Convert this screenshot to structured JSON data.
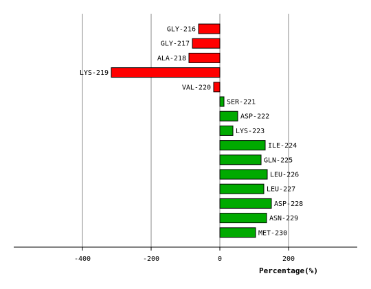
{
  "chart_data": {
    "type": "bar",
    "orientation": "horizontal",
    "categories": [
      "GLY-216",
      "GLY-217",
      "ALA-218",
      "LYS-219",
      "VAL-220",
      "SER-221",
      "ASP-222",
      "LYS-223",
      "ILE-224",
      "GLN-225",
      "LEU-226",
      "LEU-227",
      "ASP-228",
      "ASN-229",
      "MET-230"
    ],
    "values": [
      -62,
      -80,
      -90,
      -316,
      -18,
      12,
      52,
      38,
      132,
      120,
      138,
      128,
      150,
      136,
      104
    ],
    "xlabel": "Percentage(%)",
    "ylabel": "",
    "title": "",
    "xlim": [
      -600,
      400
    ],
    "xticks": [
      -400,
      -200,
      0,
      200
    ],
    "xtick_labels": [
      "-400",
      "-200",
      "0",
      "200"
    ],
    "grid": "vertical",
    "colors": {
      "negative": "#ff0000",
      "positive": "#00aa00",
      "grid": "#888888",
      "axis": "#000000"
    }
  }
}
